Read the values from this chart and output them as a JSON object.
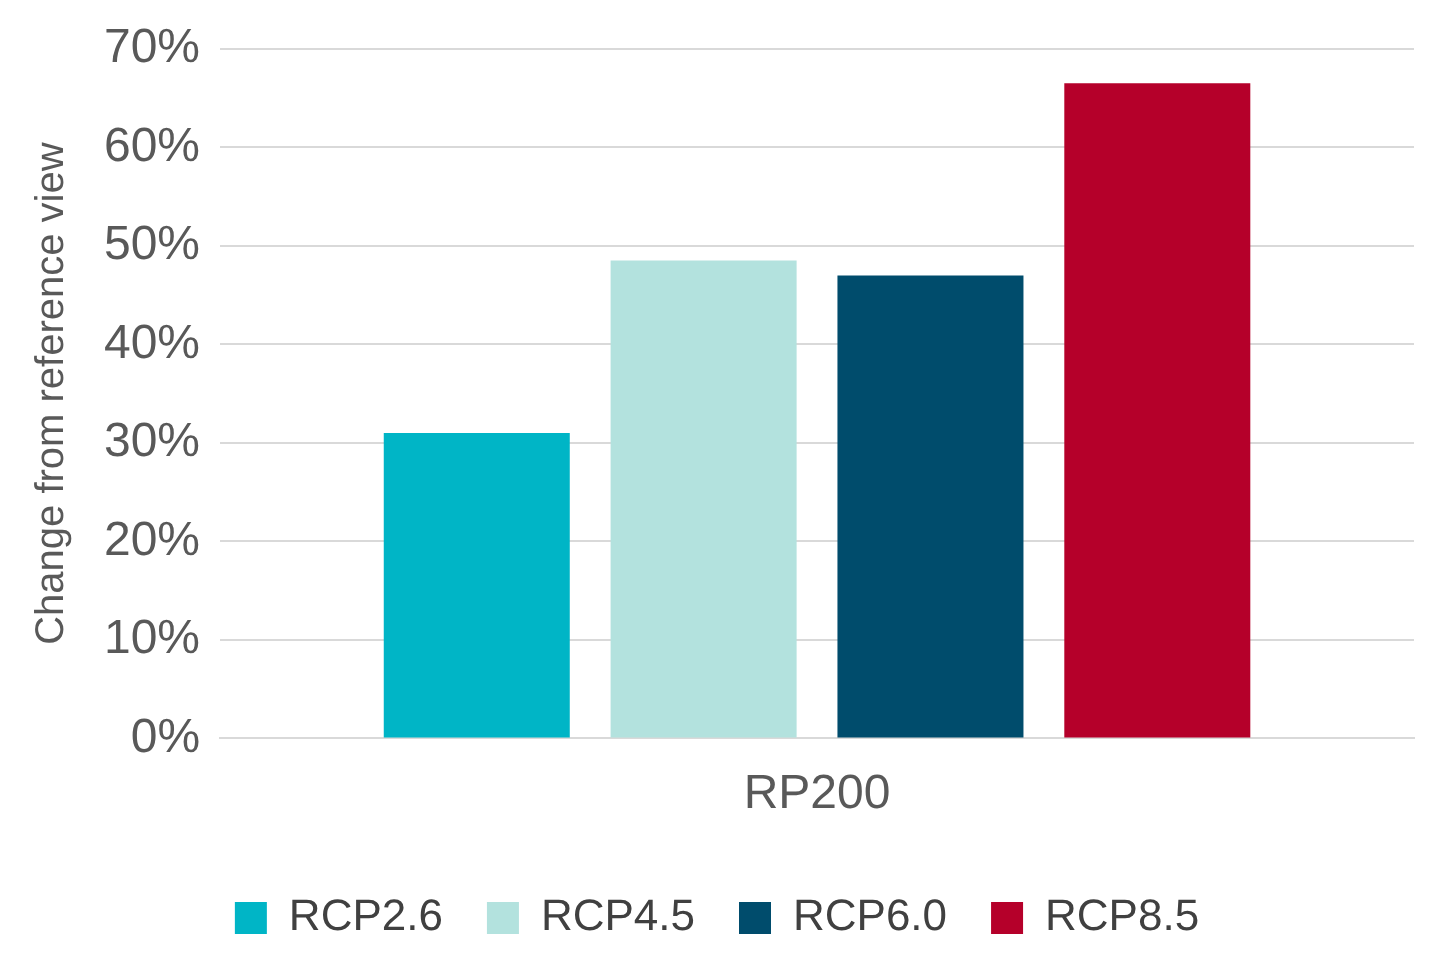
{
  "chart_data": {
    "type": "bar",
    "ylabel": "Change from reference view",
    "categories": [
      "RP200"
    ],
    "series": [
      {
        "name": "RCP2.6",
        "color": "#00b5c6",
        "values": [
          31
        ]
      },
      {
        "name": "RCP4.5",
        "color": "#b3e2de",
        "values": [
          48.5
        ]
      },
      {
        "name": "RCP6.0",
        "color": "#004c6c",
        "values": [
          47
        ]
      },
      {
        "name": "RCP8.5",
        "color": "#b5002a",
        "values": [
          66.5
        ]
      }
    ],
    "ylim": [
      0,
      70
    ],
    "yticks": [
      {
        "value": 0,
        "label": "0%"
      },
      {
        "value": 10,
        "label": "10%"
      },
      {
        "value": 20,
        "label": "20%"
      },
      {
        "value": 30,
        "label": "30%"
      },
      {
        "value": 40,
        "label": "40%"
      },
      {
        "value": 50,
        "label": "50%"
      },
      {
        "value": 60,
        "label": "60%"
      },
      {
        "value": 70,
        "label": "70%"
      }
    ],
    "grid": "y",
    "legend": "bottom"
  }
}
